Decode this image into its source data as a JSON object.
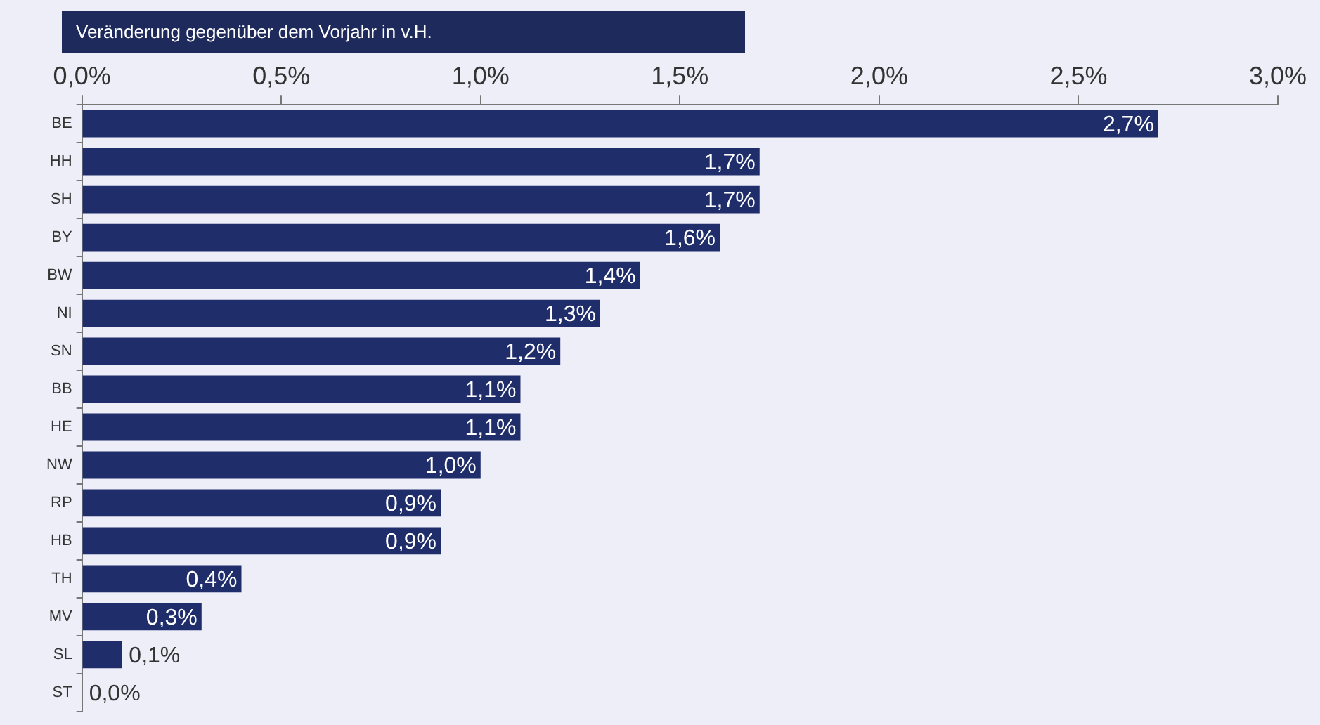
{
  "chart_data": {
    "type": "bar",
    "orientation": "horizontal",
    "title": "Veränderung  gegenüber  dem Vorjahr in v.H.",
    "categories": [
      "BE",
      "HH",
      "SH",
      "BY",
      "BW",
      "NI",
      "SN",
      "BB",
      "HE",
      "NW",
      "RP",
      "HB",
      "TH",
      "MV",
      "SL",
      "ST"
    ],
    "values": [
      2.7,
      1.7,
      1.7,
      1.6,
      1.4,
      1.3,
      1.2,
      1.1,
      1.1,
      1.0,
      0.9,
      0.9,
      0.4,
      0.3,
      0.1,
      0.0
    ],
    "value_labels": [
      "2,7%",
      "1,7%",
      "1,7%",
      "1,6%",
      "1,4%",
      "1,3%",
      "1,2%",
      "1,1%",
      "1,1%",
      "1,0%",
      "0,9%",
      "0,9%",
      "0,4%",
      "0,3%",
      "0,1%",
      "0,0%"
    ],
    "color": "#1f2d6b",
    "xlim": [
      0,
      3
    ],
    "xticks": [
      {
        "value": 0,
        "label": "0,0%"
      },
      {
        "value": 0.5,
        "label": "0,5%"
      },
      {
        "value": 1,
        "label": "1,0%"
      },
      {
        "value": 1.5,
        "label": "1,5%"
      },
      {
        "value": 2,
        "label": "2,0%"
      },
      {
        "value": 2.5,
        "label": "2,5%"
      },
      {
        "value": 3,
        "label": "3,0%"
      }
    ],
    "grid": false,
    "legend": false
  }
}
